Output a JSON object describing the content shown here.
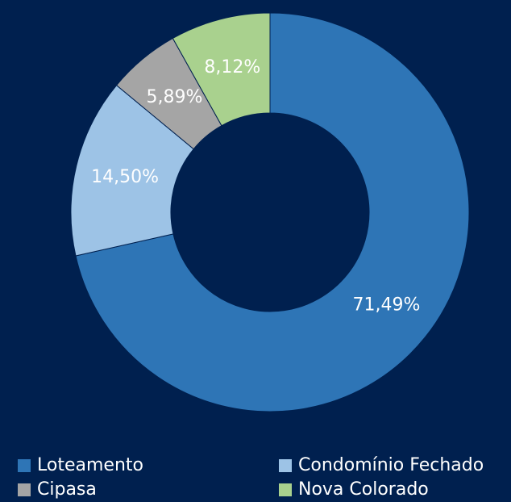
{
  "chart_data": {
    "type": "donut",
    "categories": [
      "Loteamento",
      "Condomínio Fechado",
      "Cipasa",
      "Nova Colorado"
    ],
    "values": [
      71.49,
      14.5,
      5.89,
      8.12
    ],
    "value_labels": [
      "71,49%",
      "14,50%",
      "5,89%",
      "8,12%"
    ],
    "colors": [
      "#2e75b6",
      "#9dc3e6",
      "#a5a5a5",
      "#a9d18e"
    ],
    "legend": "bottom"
  }
}
